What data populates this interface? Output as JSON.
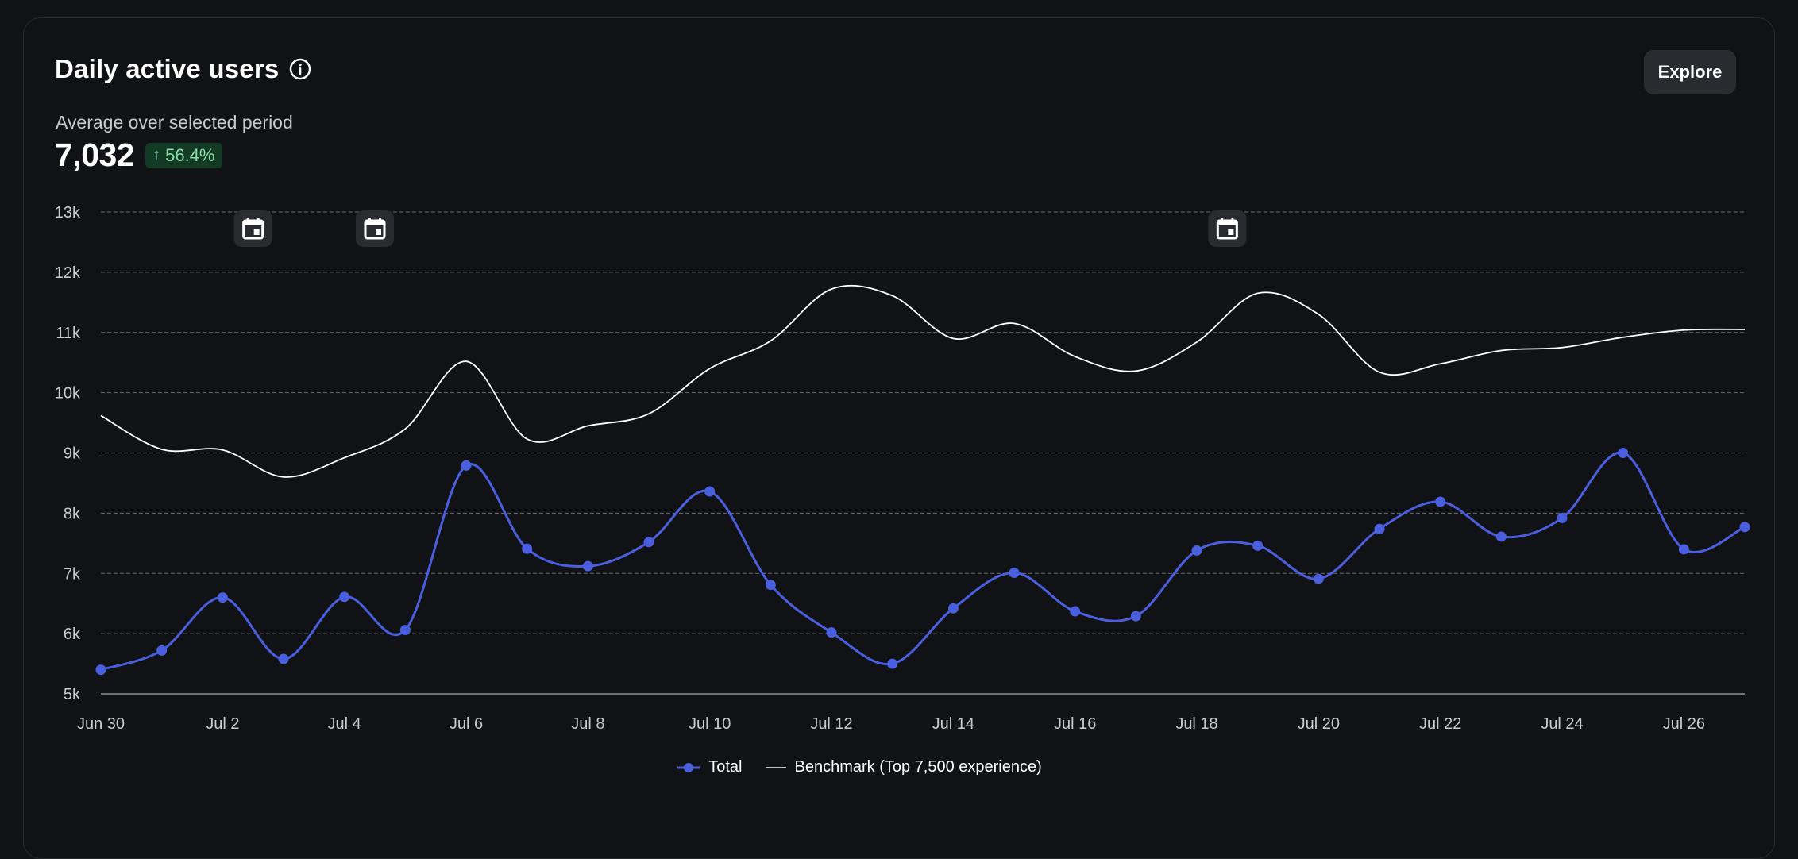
{
  "header": {
    "title": "Daily active users",
    "explore_label": "Explore",
    "subtitle": "Average over selected period",
    "metric_value": "7,032",
    "change": "56.4%",
    "change_direction": "up"
  },
  "colors": {
    "total": "#4a5fe0",
    "benchmark": "#ffffff",
    "badge_bg": "#123a25",
    "badge_fg": "#88e0a5",
    "grid": "#6a6c73"
  },
  "icons": [
    "info-icon",
    "arrow-up-icon",
    "calendar-icon"
  ],
  "chart_data": {
    "type": "line",
    "x": [
      "Jun 30",
      "Jul 1",
      "Jul 2",
      "Jul 3",
      "Jul 4",
      "Jul 5",
      "Jul 6",
      "Jul 7",
      "Jul 8",
      "Jul 9",
      "Jul 10",
      "Jul 11",
      "Jul 12",
      "Jul 13",
      "Jul 14",
      "Jul 15",
      "Jul 16",
      "Jul 17",
      "Jul 18",
      "Jul 19",
      "Jul 20",
      "Jul 21",
      "Jul 22",
      "Jul 23",
      "Jul 24",
      "Jul 25",
      "Jul 26",
      "Jul 27"
    ],
    "x_tick_labels": [
      "Jun 30",
      "Jul 2",
      "Jul 4",
      "Jul 6",
      "Jul 8",
      "Jul 10",
      "Jul 12",
      "Jul 14",
      "Jul 16",
      "Jul 18",
      "Jul 20",
      "Jul 22",
      "Jul 24",
      "Jul 26"
    ],
    "y_tick_labels": [
      "5k",
      "6k",
      "7k",
      "8k",
      "9k",
      "10k",
      "11k",
      "12k",
      "13k"
    ],
    "ylim": [
      5000,
      13000
    ],
    "grid": true,
    "series": [
      {
        "name": "Total",
        "markers": true,
        "values": [
          5400,
          5720,
          6600,
          5580,
          6610,
          6060,
          8790,
          7410,
          7120,
          7520,
          8360,
          6810,
          6020,
          5500,
          6420,
          7010,
          6370,
          6290,
          7380,
          7460,
          6910,
          7740,
          8190,
          7610,
          7920,
          9000,
          7400,
          7770
        ]
      },
      {
        "name": "Benchmark (Top 7,500 experience)",
        "markers": false,
        "values": [
          9620,
          9060,
          9050,
          8600,
          8920,
          9400,
          10520,
          9230,
          9450,
          9650,
          10400,
          10860,
          11720,
          11610,
          10900,
          11150,
          10600,
          10360,
          10840,
          11650,
          11300,
          10340,
          10480,
          10700,
          10750,
          10920,
          11040,
          11050
        ]
      }
    ],
    "legend_position": "bottom-center",
    "event_markers": [
      "Jul 2",
      "Jul 4",
      "Jul 18"
    ]
  }
}
